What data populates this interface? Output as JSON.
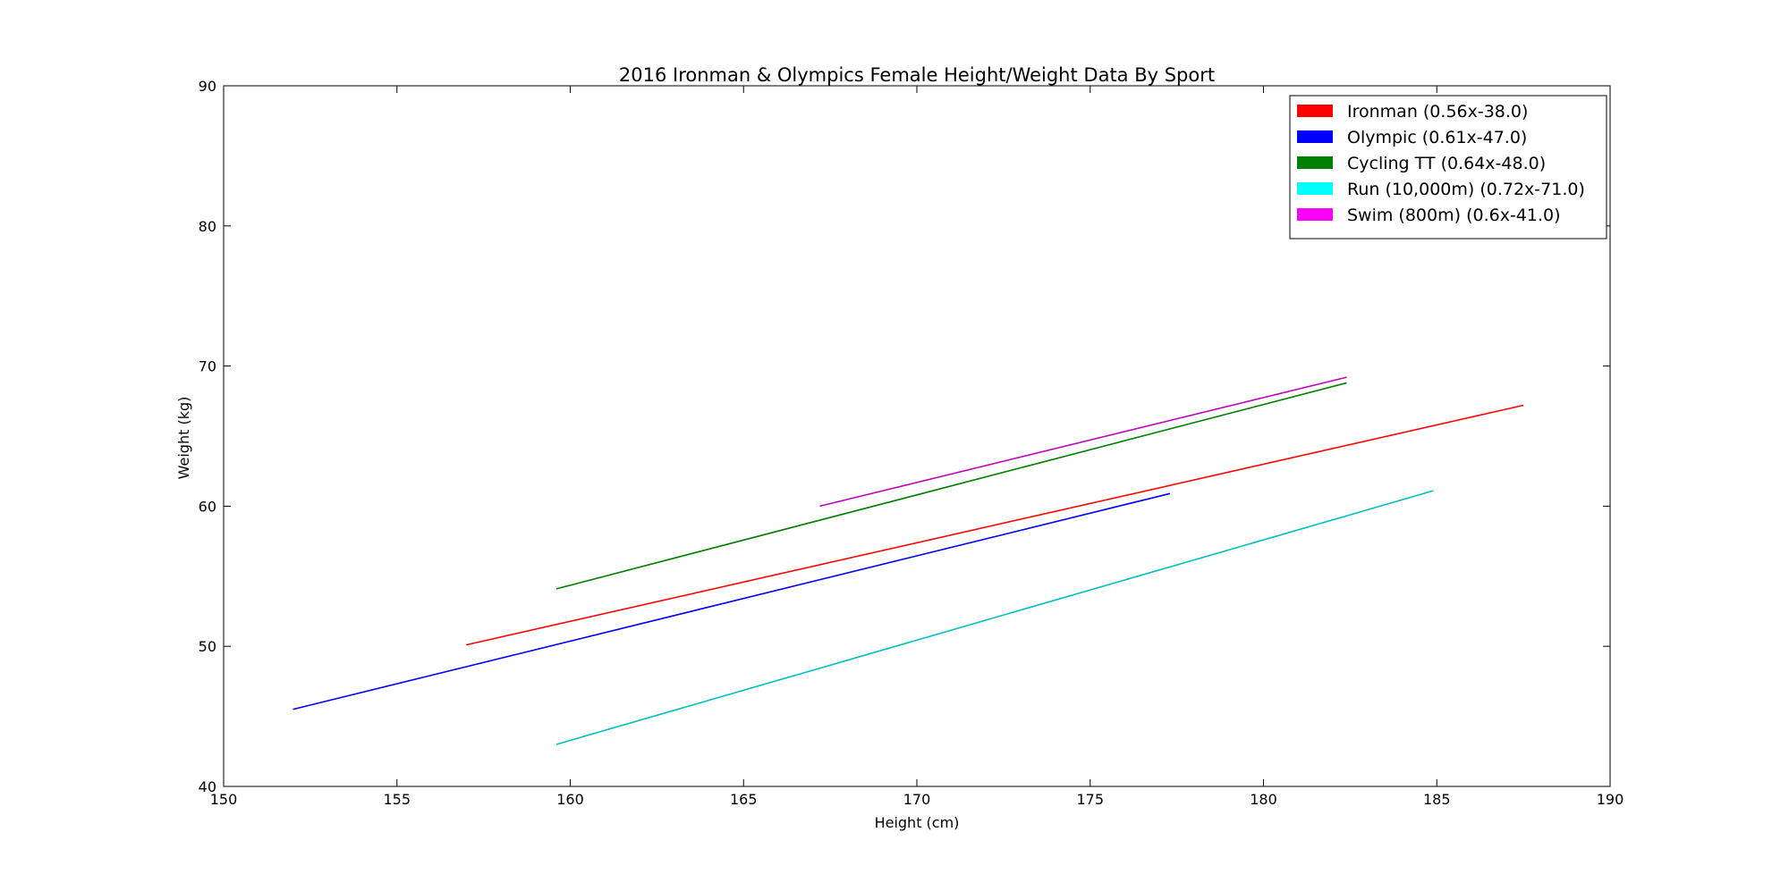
{
  "chart_data": {
    "type": "line",
    "title": "2016 Ironman & Olympics Female Height/Weight Data By Sport",
    "xlabel": "Height (cm)",
    "ylabel": "Weight (kg)",
    "xlim": [
      150,
      190
    ],
    "ylim": [
      40,
      90
    ],
    "xticks": [
      150,
      155,
      160,
      165,
      170,
      175,
      180,
      185,
      190
    ],
    "yticks": [
      40,
      50,
      60,
      70,
      80,
      90
    ],
    "grid": false,
    "legend_position": "top-right",
    "series": [
      {
        "name": "Ironman (0.56x-38.0)",
        "color": "#ff0000",
        "x": [
          157.0,
          187.5
        ],
        "y": [
          50.1,
          67.2
        ]
      },
      {
        "name": "Olympic (0.61x-47.0)",
        "color": "#0000ff",
        "x": [
          152.0,
          177.3
        ],
        "y": [
          45.5,
          60.9
        ]
      },
      {
        "name": "Cycling TT (0.64x-48.0)",
        "color": "#008000",
        "x": [
          159.6,
          182.4
        ],
        "y": [
          54.1,
          68.8
        ]
      },
      {
        "name": "Run (10,000m) (0.72x-71.0)",
        "color": "#00bfbf",
        "x": [
          159.6,
          184.9
        ],
        "y": [
          43.0,
          61.1
        ]
      },
      {
        "name": "Swim (800m) (0.6x-41.0)",
        "color": "#bf00bf",
        "x": [
          167.2,
          182.4
        ],
        "y": [
          60.0,
          69.2
        ]
      }
    ],
    "legend_swatch_colors": [
      "#ff0000",
      "#0000ff",
      "#008000",
      "#00ffff",
      "#ff00ff"
    ]
  }
}
